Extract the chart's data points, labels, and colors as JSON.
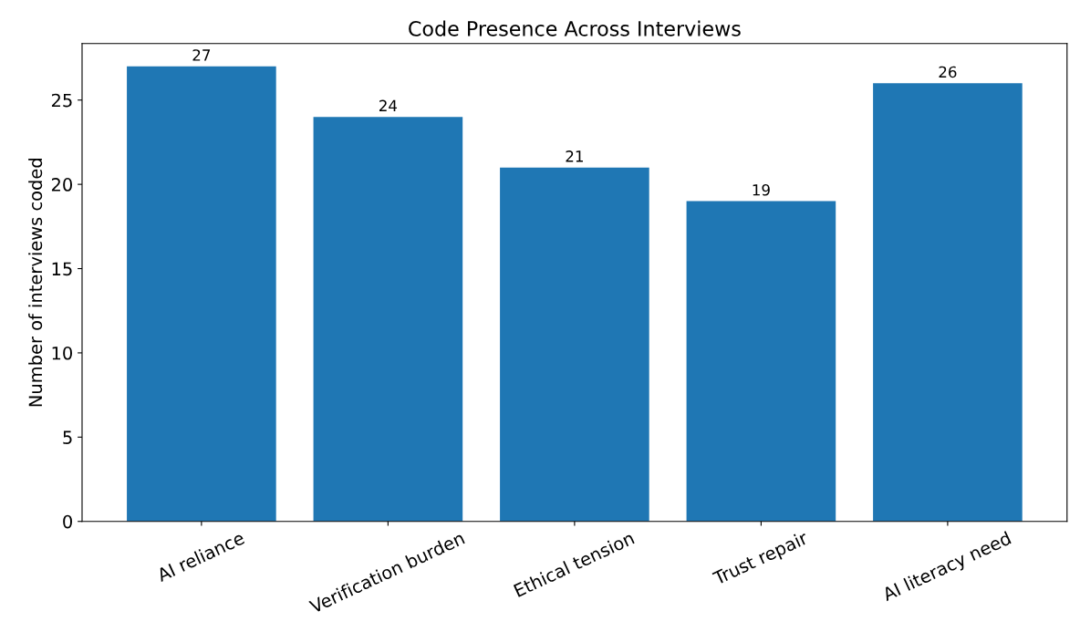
{
  "chart_data": {
    "type": "bar",
    "title": "Code Presence Across Interviews",
    "ylabel": "Number of interviews coded",
    "categories": [
      "AI reliance",
      "Verification burden",
      "Ethical tension",
      "Trust repair",
      "AI literacy need"
    ],
    "values": [
      27,
      24,
      21,
      19,
      26
    ],
    "color": "#1f77b4",
    "ylim": [
      0,
      28.35
    ],
    "yticks": [
      0,
      5,
      10,
      15,
      20,
      25
    ],
    "data_labels": true,
    "grid": false,
    "legend": false
  }
}
